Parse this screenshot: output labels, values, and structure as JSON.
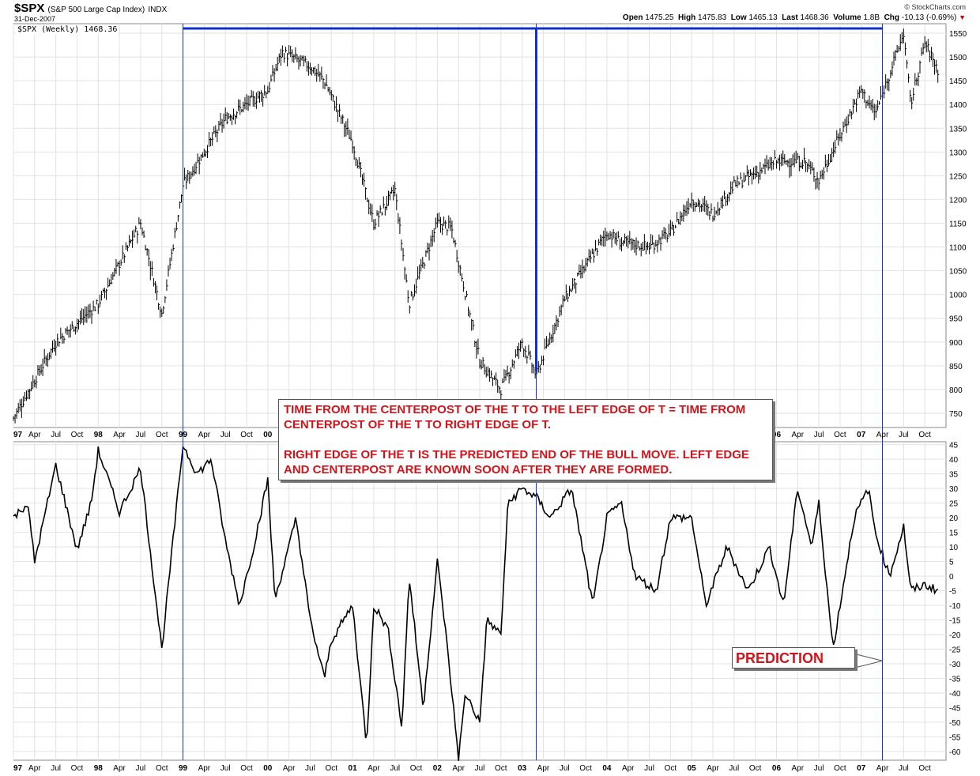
{
  "header": {
    "symbol": "$SPX",
    "name": "(S&P 500 Large Cap Index)",
    "exchange": "INDX",
    "date": "31-Dec-2007",
    "credit": "© StockCharts.com",
    "quote": {
      "open_label": "Open",
      "open": "1475.25",
      "high_label": "High",
      "high": "1475.83",
      "low_label": "Low",
      "low": "1465.13",
      "last_label": "Last",
      "last": "1468.36",
      "volume_label": "Volume",
      "volume": "1.8B",
      "chg_label": "Chg",
      "chg": "-10.13 (-0.69%)",
      "chg_icon": "down-triangle-icon"
    }
  },
  "legend": "$SPX (Weekly) 1468.36",
  "annotations": {
    "t_note_1": "TIME FROM THE CENTERPOST OF THE T TO THE LEFT EDGE OF T = TIME FROM CENTERPOST OF THE T TO RIGHT EDGE OF T.",
    "t_note_2": "RIGHT EDGE OF THE T IS THE PREDICTED END OF THE BULL MOVE.  LEFT EDGE AND CENTERPOST ARE KNOWN SOON AFTER THEY ARE FORMED.",
    "prediction": "PREDICTION"
  },
  "colors": {
    "price": "#000000",
    "t_line": "#1030c8",
    "note_text": "#d0141a",
    "grid": "#e2e2e2"
  },
  "chart_data": [
    {
      "type": "line",
      "style": "weekly price bars",
      "series": [
        {
          "x": [
            "1997-01",
            "1997-07",
            "1998-01",
            "1998-07",
            "1998-10",
            "1999-01",
            "1999-07",
            "2000-01",
            "2000-03",
            "2000-07",
            "2000-09",
            "2001-01",
            "2001-04",
            "2001-07",
            "2001-09",
            "2002-01",
            "2002-03",
            "2002-07",
            "2002-10",
            "2003-01",
            "2003-03",
            "2003-07",
            "2004-01",
            "2004-03",
            "2004-07",
            "2004-10",
            "2005-01",
            "2005-04",
            "2005-07",
            "2006-01",
            "2006-05",
            "2006-07",
            "2007-01",
            "2007-03",
            "2007-07",
            "2007-08",
            "2007-10",
            "2007-12"
          ],
          "values": [
            740,
            900,
            980,
            1150,
            960,
            1230,
            1370,
            1430,
            1510,
            1480,
            1450,
            1320,
            1150,
            1220,
            980,
            1150,
            1140,
            860,
            800,
            900,
            830,
            990,
            1130,
            1110,
            1100,
            1130,
            1200,
            1170,
            1230,
            1280,
            1280,
            1240,
            1430,
            1380,
            1550,
            1400,
            1530,
            1468
          ]
        }
      ],
      "ylim": [
        720,
        1570
      ],
      "yticks": [
        750,
        800,
        850,
        900,
        950,
        1000,
        1050,
        1100,
        1150,
        1200,
        1250,
        1300,
        1350,
        1400,
        1450,
        1500,
        1550
      ],
      "xticks": [
        "97",
        "Apr",
        "Jul",
        "Oct",
        "98",
        "Apr",
        "Jul",
        "Oct",
        "99",
        "Apr",
        "Jul",
        "Oct",
        "00",
        "Apr",
        "Jul",
        "Oct",
        "01",
        "Apr",
        "Jul",
        "Oct",
        "02",
        "Apr",
        "Jul",
        "Oct",
        "03",
        "Apr",
        "Jul",
        "Oct",
        "04",
        "Apr",
        "Jul",
        "Oct",
        "05",
        "Apr",
        "Jul",
        "Oct",
        "06",
        "Apr",
        "Jul",
        "Oct",
        "07",
        "Apr",
        "Jul",
        "Oct"
      ],
      "t_marker": {
        "left": "1999-01",
        "center": "2003-03",
        "right": "2007-04",
        "level": 1560,
        "center_low": 840
      },
      "grid": true
    },
    {
      "type": "line",
      "style": "oscillator",
      "series": [
        {
          "x": [
            "1997-01",
            "1997-03",
            "1997-04",
            "1997-07",
            "1997-10",
            "1997-12",
            "1998-01",
            "1998-04",
            "1998-07",
            "1998-10",
            "1999-01",
            "1999-03",
            "1999-05",
            "1999-07",
            "1999-09",
            "1999-11",
            "2000-01",
            "2000-02",
            "2000-04",
            "2000-05",
            "2000-07",
            "2000-09",
            "2000-10",
            "2001-01",
            "2001-03",
            "2001-04",
            "2001-06",
            "2001-08",
            "2001-09",
            "2001-11",
            "2002-01",
            "2002-02",
            "2002-04",
            "2002-05",
            "2002-07",
            "2002-08",
            "2002-10",
            "2002-11",
            "2003-01",
            "2003-03",
            "2003-05",
            "2003-08",
            "2003-11",
            "2004-01",
            "2004-03",
            "2004-05",
            "2004-08",
            "2004-10",
            "2005-01",
            "2005-03",
            "2005-06",
            "2005-09",
            "2005-12",
            "2006-02",
            "2006-04",
            "2006-06",
            "2006-07",
            "2006-09",
            "2006-12",
            "2007-02",
            "2007-03",
            "2007-05",
            "2007-07",
            "2007-08",
            "2007-10",
            "2007-12"
          ],
          "values": [
            20,
            25,
            5,
            38,
            9,
            25,
            43,
            22,
            37,
            -25,
            45,
            35,
            40,
            12,
            -10,
            10,
            33,
            -8,
            10,
            20,
            -15,
            -35,
            -22,
            -10,
            -58,
            -10,
            -18,
            -52,
            0,
            -45,
            5,
            -15,
            -62,
            -40,
            -50,
            -15,
            -20,
            25,
            30,
            27,
            20,
            30,
            -10,
            20,
            25,
            0,
            -5,
            20,
            20,
            -10,
            10,
            -5,
            10,
            -10,
            30,
            10,
            25,
            -25,
            20,
            30,
            15,
            0,
            17,
            -5,
            -3,
            -5
          ]
        }
      ],
      "ylim": [
        -63,
        46
      ],
      "yticks": [
        45,
        40,
        35,
        30,
        25,
        20,
        15,
        10,
        5,
        0,
        -5,
        -10,
        -15,
        -20,
        -25,
        -30,
        -35,
        -40,
        -45,
        -50,
        -55,
        -60
      ],
      "xticks": [
        "97",
        "Apr",
        "Jul",
        "Oct",
        "98",
        "Apr",
        "Jul",
        "Oct",
        "99",
        "Apr",
        "Jul",
        "Oct",
        "00",
        "Apr",
        "Jul",
        "Oct",
        "01",
        "Apr",
        "Jul",
        "Oct",
        "02",
        "Apr",
        "Jul",
        "Oct",
        "03",
        "Apr",
        "Jul",
        "Oct",
        "04",
        "Apr",
        "Jul",
        "Oct",
        "05",
        "Apr",
        "Jul",
        "Oct",
        "06",
        "Apr",
        "Jul",
        "Oct",
        "07",
        "Apr",
        "Jul",
        "Oct"
      ],
      "prediction_pointer": {
        "x": "2007-04",
        "y": -29
      },
      "grid": true
    }
  ]
}
